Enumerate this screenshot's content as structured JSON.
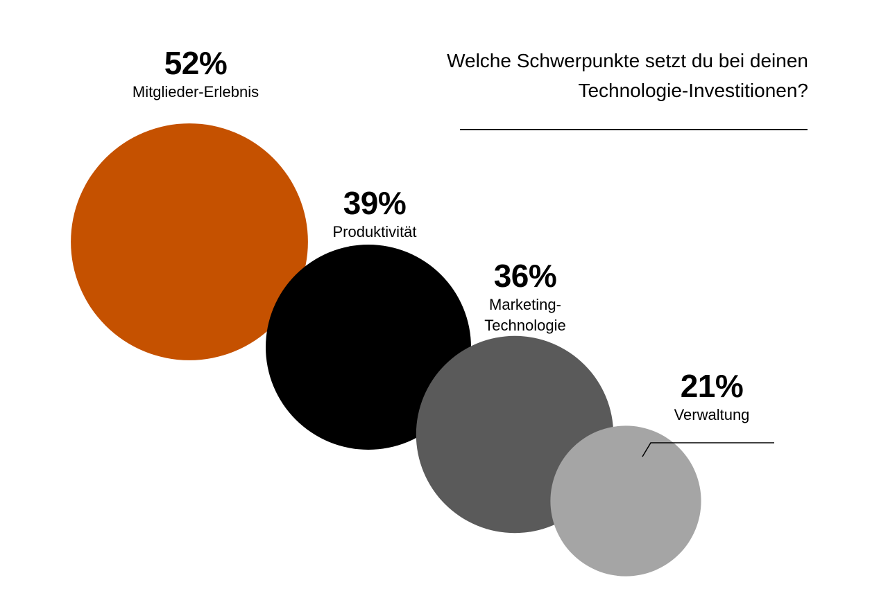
{
  "chart_data": {
    "type": "bubble",
    "title": "Welche Schwerpunkte setzt du bei deinen Technologie-Investitionen?",
    "unit": "%",
    "categories": [
      "Mitglieder-Erlebnis",
      "Produktivität",
      "Marketing-\nTechnologie",
      "Verwaltung"
    ],
    "values": [
      52,
      39,
      36,
      21
    ],
    "value_labels": [
      "52%",
      "39%",
      "36%",
      "21%"
    ],
    "colors": [
      "#C55100",
      "#000000",
      "#5A5A5A",
      "#A5A5A5"
    ]
  }
}
